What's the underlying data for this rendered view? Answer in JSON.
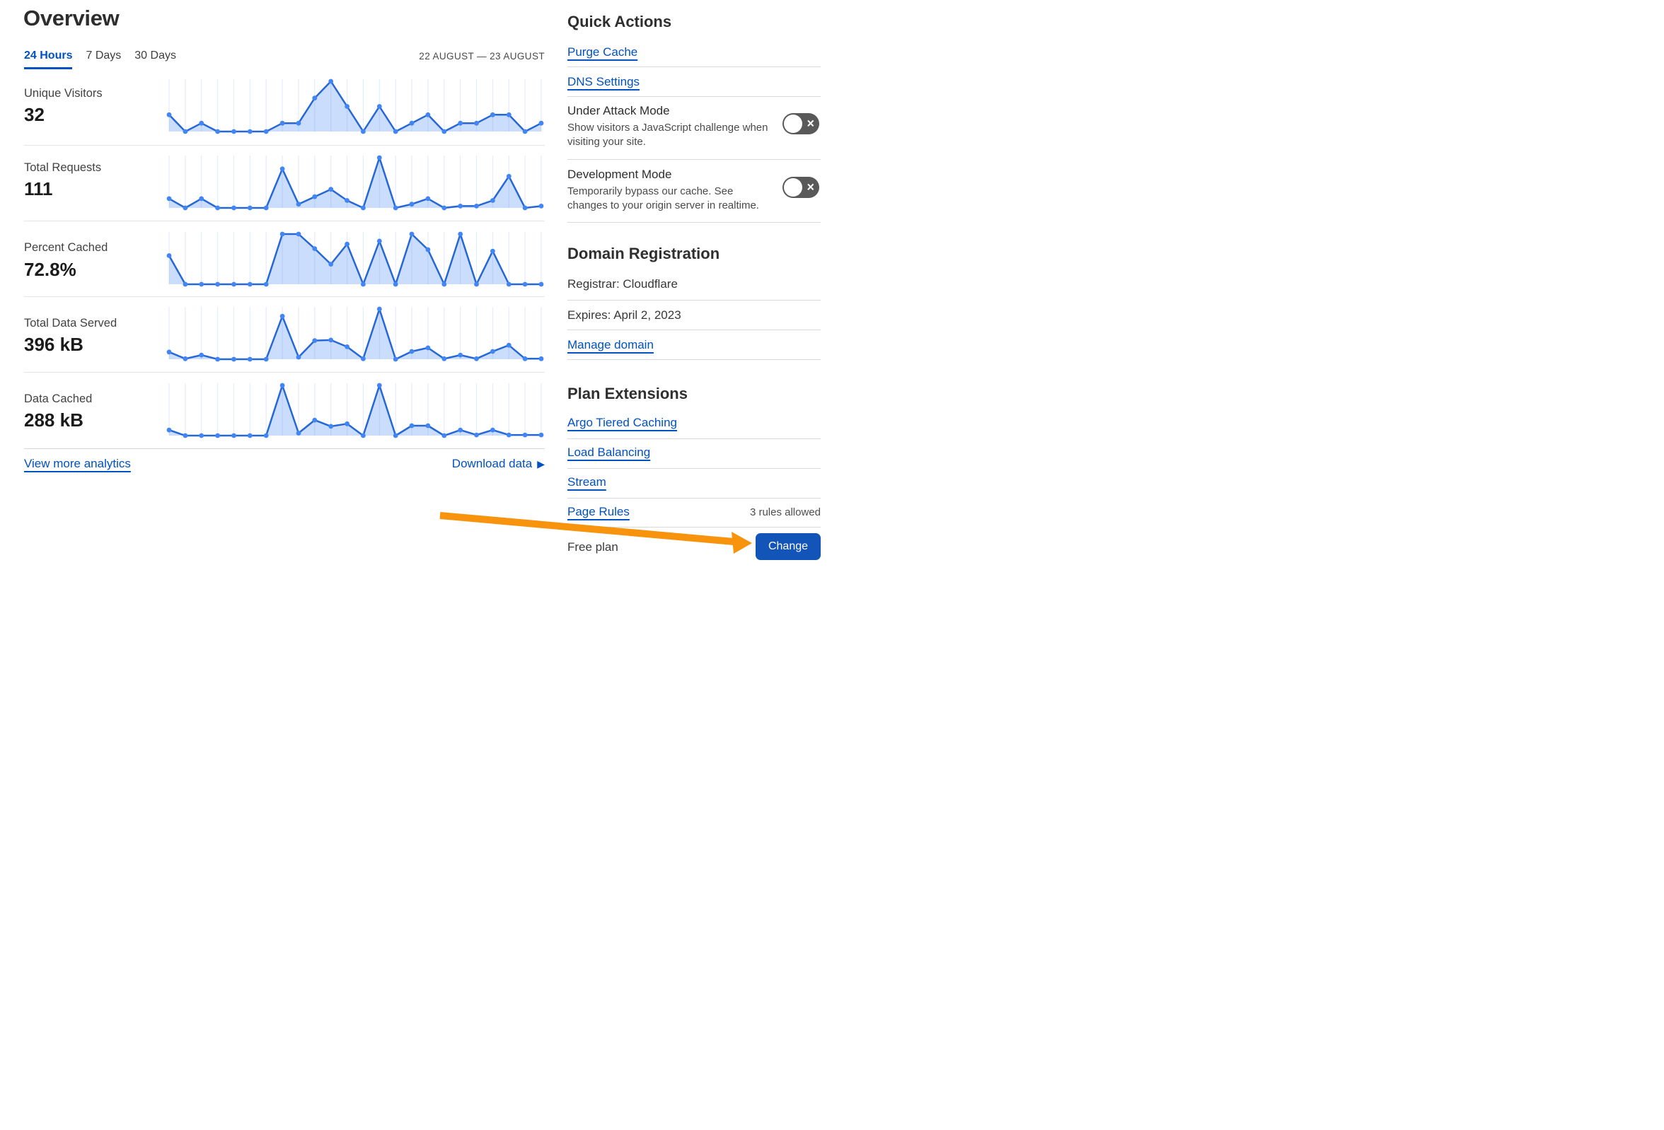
{
  "page": {
    "title": "Overview"
  },
  "tabs": [
    {
      "label": "24 Hours",
      "active": true
    },
    {
      "label": "7 Days",
      "active": false
    },
    {
      "label": "30 Days",
      "active": false
    }
  ],
  "date_range": "22 AUGUST — 23 AUGUST",
  "metrics": [
    {
      "label": "Unique Visitors",
      "value": "32"
    },
    {
      "label": "Total Requests",
      "value": "111"
    },
    {
      "label": "Percent Cached",
      "value": "72.8%"
    },
    {
      "label": "Total Data Served",
      "value": "396 kB"
    },
    {
      "label": "Data Cached",
      "value": "288 kB"
    }
  ],
  "chart_data": [
    {
      "type": "area",
      "title": "Unique Visitors",
      "unit": "visitors",
      "x_range": "22 AUGUST — 23 AUGUST",
      "points": 24,
      "grid": true,
      "ylim": [
        0,
        6
      ],
      "values": [
        2,
        0,
        1,
        0,
        0,
        0,
        0,
        1,
        1,
        4,
        6,
        3,
        0,
        3,
        0,
        1,
        2,
        0,
        1,
        1,
        2,
        2,
        0,
        1
      ]
    },
    {
      "type": "area",
      "title": "Total Requests",
      "unit": "requests",
      "x_range": "22 AUGUST — 23 AUGUST",
      "points": 24,
      "grid": true,
      "ylim": [
        0,
        27
      ],
      "values": [
        5,
        0,
        5,
        0,
        0,
        0,
        0,
        21,
        2,
        6,
        10,
        4,
        0,
        27,
        0,
        2,
        5,
        0,
        1,
        1,
        4,
        17,
        0,
        1
      ]
    },
    {
      "type": "area",
      "title": "Percent Cached",
      "unit": "%",
      "x_range": "22 AUGUST — 23 AUGUST",
      "points": 24,
      "grid": true,
      "ylim": [
        0,
        100
      ],
      "values": [
        57,
        0,
        0,
        0,
        0,
        0,
        0,
        100,
        100,
        71,
        40,
        80,
        0,
        86,
        0,
        100,
        69,
        0,
        100,
        0,
        66,
        0,
        0,
        0
      ]
    },
    {
      "type": "area",
      "title": "Total Data Served",
      "unit": "kB",
      "x_range": "22 AUGUST — 23 AUGUST",
      "points": 24,
      "grid": true,
      "ylim": [
        0,
        97
      ],
      "values": [
        14,
        1,
        8,
        0,
        0,
        0,
        0,
        83,
        4,
        36,
        37,
        24,
        1,
        97,
        0,
        15,
        22,
        1,
        8,
        1,
        15,
        27,
        1,
        1
      ]
    },
    {
      "type": "area",
      "title": "Data Cached",
      "unit": "kB",
      "x_range": "22 AUGUST — 23 AUGUST",
      "points": 24,
      "grid": true,
      "ylim": [
        0,
        81
      ],
      "values": [
        9,
        0,
        0,
        0,
        0,
        0,
        0,
        81,
        4,
        25,
        15,
        19,
        0,
        81,
        0,
        16,
        16,
        0,
        9,
        1,
        9,
        1,
        1,
        1
      ]
    }
  ],
  "footer": {
    "view_more_label": "View more analytics",
    "download_label": "Download data"
  },
  "icons": {
    "download_caret": "▶",
    "toggle_off": "×"
  },
  "sidebar": {
    "quick_actions": {
      "heading": "Quick Actions",
      "links": [
        "Purge Cache",
        "DNS Settings"
      ],
      "toggles": [
        {
          "title": "Under Attack Mode",
          "description": "Show visitors a JavaScript challenge when visiting your site.",
          "state": "off"
        },
        {
          "title": "Development Mode",
          "description": "Temporarily bypass our cache. See changes to your origin server in realtime.",
          "state": "off"
        }
      ]
    },
    "domain_registration": {
      "heading": "Domain Registration",
      "registrar": "Registrar: Cloudflare",
      "expires": "Expires: April 2, 2023",
      "manage_label": "Manage domain"
    },
    "plan_extensions": {
      "heading": "Plan Extensions",
      "links": [
        "Argo Tiered Caching",
        "Load Balancing",
        "Stream",
        "Page Rules"
      ],
      "page_rules_note": "3 rules allowed"
    },
    "plan": {
      "name": "Free plan",
      "change_label": "Change"
    }
  },
  "annotation": {
    "type": "arrow",
    "points_to": "Change"
  },
  "colors": {
    "link_blue": "#0051c3",
    "chart_line": "#2667d6",
    "chart_dot": "#4285f4",
    "chart_fill": "rgba(66,133,244,0.28)",
    "gridline": "#e4edfa",
    "toggle_gray": "#595959",
    "button_blue": "#1254b8",
    "arrow_orange": "#f7930d"
  }
}
